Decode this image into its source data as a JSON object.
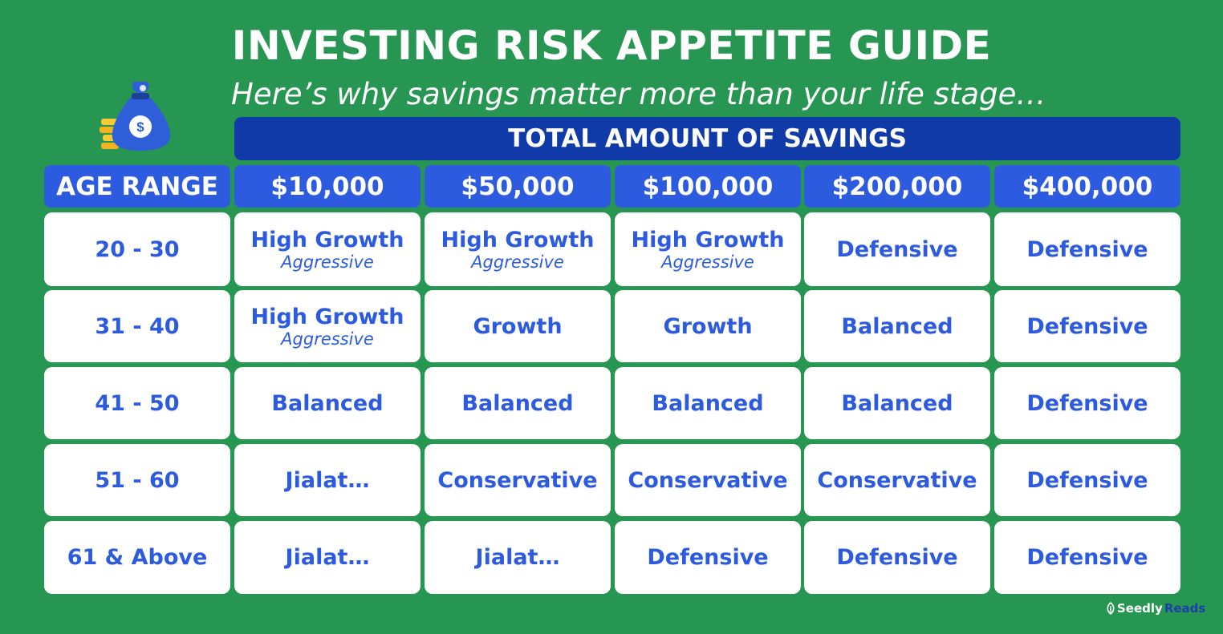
{
  "title": "INVESTING RISK APPETITE GUIDE",
  "subtitle": "Here’s why savings matter more than your life stage…",
  "savings_header": "TOTAL AMOUNT OF SAVINGS",
  "age_header": "AGE RANGE",
  "columns": [
    "$10,000",
    "$50,000",
    "$100,000",
    "$200,000",
    "$400,000"
  ],
  "rows": [
    {
      "age": "20 - 30",
      "cells": [
        {
          "main": "High Growth",
          "sub": "Aggressive"
        },
        {
          "main": "High Growth",
          "sub": "Aggressive"
        },
        {
          "main": "High Growth",
          "sub": "Aggressive"
        },
        {
          "main": "Defensive"
        },
        {
          "main": "Defensive"
        }
      ]
    },
    {
      "age": "31 - 40",
      "cells": [
        {
          "main": "High Growth",
          "sub": "Aggressive"
        },
        {
          "main": "Growth"
        },
        {
          "main": "Growth"
        },
        {
          "main": "Balanced"
        },
        {
          "main": "Defensive"
        }
      ]
    },
    {
      "age": "41 - 50",
      "cells": [
        {
          "main": "Balanced"
        },
        {
          "main": "Balanced"
        },
        {
          "main": "Balanced"
        },
        {
          "main": "Balanced"
        },
        {
          "main": "Defensive"
        }
      ]
    },
    {
      "age": "51 - 60",
      "cells": [
        {
          "main": "Jialat…"
        },
        {
          "main": "Conservative"
        },
        {
          "main": "Conservative"
        },
        {
          "main": "Conservative"
        },
        {
          "main": "Defensive"
        }
      ]
    },
    {
      "age": "61 & Above",
      "cells": [
        {
          "main": "Jialat…"
        },
        {
          "main": "Jialat…"
        },
        {
          "main": "Defensive"
        },
        {
          "main": "Defensive"
        },
        {
          "main": "Defensive"
        }
      ]
    }
  ],
  "brand": {
    "part1": "Seedly",
    "part2": "Reads"
  },
  "icons": {
    "bag": "money-bag-icon",
    "brand": "seedly-leaf-icon"
  },
  "colors": {
    "background": "#279652",
    "header_dark": "#0f3aa7",
    "header": "#2c5be0",
    "text": "#2c5be0"
  }
}
